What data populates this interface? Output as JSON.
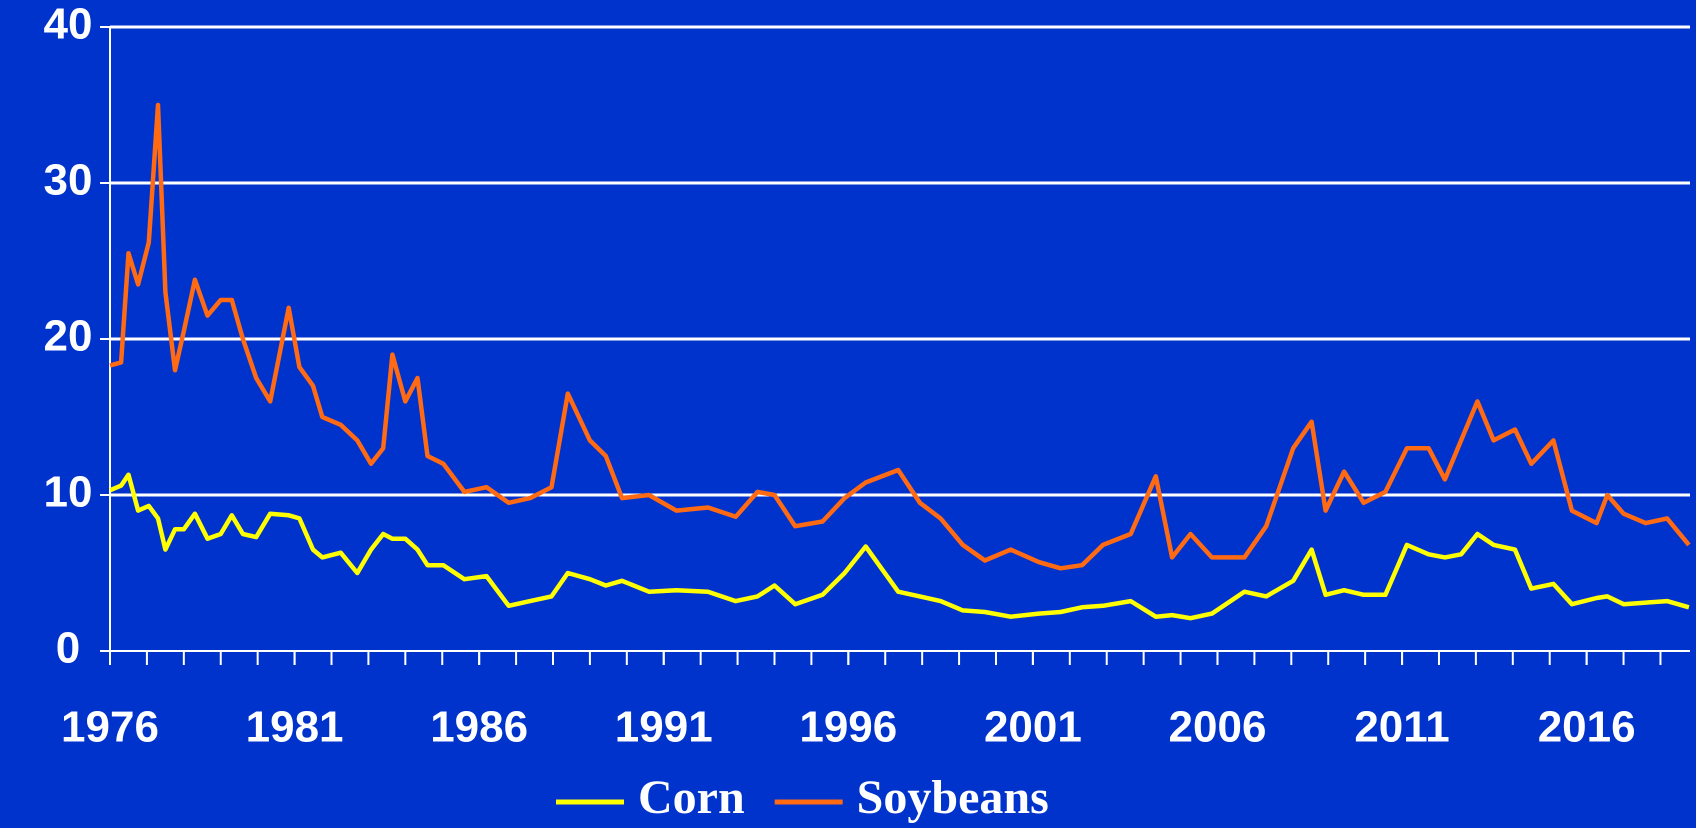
{
  "chart_data": {
    "type": "line",
    "x": [
      1976.0,
      1976.3,
      1976.5,
      1976.76,
      1977.05,
      1977.3,
      1977.5,
      1977.76,
      1978.0,
      1978.3,
      1978.64,
      1979.0,
      1979.3,
      1979.6,
      1979.96,
      1980.34,
      1980.84,
      1981.13,
      1981.5,
      1981.75,
      1982.25,
      1982.7,
      1983.07,
      1983.4,
      1983.65,
      1984.0,
      1984.33,
      1984.6,
      1985.03,
      1985.6,
      1986.2,
      1986.8,
      1987.38,
      1987.96,
      1988.4,
      1989.0,
      1989.43,
      1989.87,
      1990.6,
      1991.34,
      1992.2,
      1992.95,
      1993.54,
      1994.0,
      1994.56,
      1995.3,
      1995.9,
      1996.47,
      1997.35,
      1997.94,
      1998.5,
      1999.1,
      1999.7,
      2000.4,
      2001.16,
      2001.75,
      2002.33,
      2002.9,
      2003.65,
      2004.33,
      2004.77,
      2005.27,
      2005.85,
      2006.73,
      2007.32,
      2008.05,
      2008.55,
      2008.93,
      2009.43,
      2009.96,
      2010.55,
      2011.13,
      2011.72,
      2012.16,
      2012.6,
      2013.04,
      2013.48,
      2014.06,
      2014.5,
      2015.1,
      2015.6,
      2016.27,
      2016.56,
      2017.0,
      2017.6,
      2018.18,
      2018.77
    ],
    "series": [
      {
        "name": "Corn",
        "color": "#ffff00",
        "values": [
          10.3,
          10.6,
          11.3,
          9,
          9.3,
          8.5,
          6.5,
          7.8,
          7.8,
          8.8,
          7.2,
          7.5,
          8.7,
          7.5,
          7.3,
          8.8,
          8.7,
          8.5,
          6.5,
          6,
          6.3,
          5,
          6.5,
          7.5,
          7.2,
          7.2,
          6.5,
          5.5,
          5.5,
          4.6,
          4.8,
          2.9,
          3.2,
          3.5,
          5,
          4.6,
          4.2,
          4.5,
          3.8,
          3.9,
          3.8,
          3.2,
          3.5,
          4.2,
          3,
          3.6,
          5,
          6.7,
          3.8,
          3.5,
          3.2,
          2.6,
          2.5,
          2.2,
          2.4,
          2.5,
          2.8,
          2.9,
          3.2,
          2.2,
          2.3,
          2.1,
          2.4,
          3.8,
          3.5,
          4.5,
          6.5,
          3.6,
          3.9,
          3.6,
          3.6,
          6.8,
          6.2,
          6,
          6.2,
          7.5,
          6.8,
          6.5,
          4,
          4.3,
          3,
          3.4,
          3.5,
          3,
          3.1,
          3.2,
          2.8
        ]
      },
      {
        "name": "Soybeans",
        "color": "#ff6a13",
        "values": [
          18.3,
          18.5,
          25.5,
          23.5,
          26.2,
          35,
          23,
          18,
          20.5,
          23.8,
          21.5,
          22.5,
          22.5,
          20,
          17.5,
          16,
          22,
          18.2,
          17,
          15,
          14.5,
          13.5,
          12,
          13,
          19,
          16,
          17.5,
          12.5,
          12,
          10.2,
          10.5,
          9.5,
          9.8,
          10.5,
          16.5,
          13.5,
          12.5,
          9.8,
          10,
          9,
          9.2,
          8.6,
          10.2,
          10,
          8,
          8.3,
          9.8,
          10.8,
          11.6,
          9.5,
          8.5,
          6.8,
          5.8,
          6.5,
          5.7,
          5.3,
          5.5,
          6.8,
          7.5,
          11.2,
          6,
          7.5,
          6,
          6,
          8,
          13,
          14.7,
          9,
          11.5,
          9.5,
          10.2,
          13,
          13,
          11,
          13.5,
          16,
          13.5,
          14.2,
          12,
          13.5,
          9,
          8.2,
          10,
          8.8,
          8.2,
          8.5,
          6.8
        ]
      }
    ],
    "xlim": [
      1976,
      2018.8
    ],
    "xticks": [
      1976,
      1981,
      1986,
      1991,
      1996,
      2001,
      2006,
      2011,
      2016
    ],
    "xminorticks": [
      1976,
      1977,
      1978,
      1979,
      1980,
      1981,
      1982,
      1983,
      1984,
      1985,
      1986,
      1987,
      1988,
      1989,
      1990,
      1991,
      1992,
      1993,
      1994,
      1995,
      1996,
      1997,
      1998,
      1999,
      2000,
      2001,
      2002,
      2003,
      2004,
      2005,
      2006,
      2007,
      2008,
      2009,
      2010,
      2011,
      2012,
      2013,
      2014,
      2015,
      2016,
      2017,
      2018
    ],
    "ylim": [
      0,
      40
    ],
    "yticks": [
      0,
      10,
      20,
      30,
      40
    ],
    "grid": true,
    "legend": "bottom"
  }
}
